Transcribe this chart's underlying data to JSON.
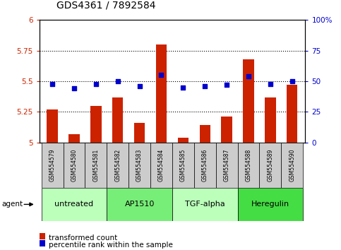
{
  "title": "GDS4361 / 7892584",
  "samples": [
    "GSM554579",
    "GSM554580",
    "GSM554581",
    "GSM554582",
    "GSM554583",
    "GSM554584",
    "GSM554585",
    "GSM554586",
    "GSM554587",
    "GSM554588",
    "GSM554589",
    "GSM554590"
  ],
  "red_values": [
    5.27,
    5.07,
    5.3,
    5.37,
    5.16,
    5.8,
    5.04,
    5.14,
    5.21,
    5.68,
    5.37,
    5.47
  ],
  "blue_values": [
    48,
    44,
    48,
    50,
    46,
    55,
    45,
    46,
    47,
    54,
    48,
    50
  ],
  "ylim_left": [
    5.0,
    6.0
  ],
  "ylim_right": [
    0,
    100
  ],
  "yticks_left": [
    5.0,
    5.25,
    5.5,
    5.75,
    6.0
  ],
  "yticks_right": [
    0,
    25,
    50,
    75,
    100
  ],
  "ytick_labels_left": [
    "5",
    "5.25",
    "5.5",
    "5.75",
    "6"
  ],
  "ytick_labels_right": [
    "0",
    "25",
    "50",
    "75",
    "100%"
  ],
  "hlines": [
    5.25,
    5.5,
    5.75
  ],
  "agent_groups": [
    {
      "label": "untreated",
      "start": 0,
      "end": 3,
      "color": "#bbffbb"
    },
    {
      "label": "AP1510",
      "start": 3,
      "end": 6,
      "color": "#77ee77"
    },
    {
      "label": "TGF-alpha",
      "start": 6,
      "end": 9,
      "color": "#bbffbb"
    },
    {
      "label": "Heregulin",
      "start": 9,
      "end": 12,
      "color": "#44dd44"
    }
  ],
  "bar_color": "#cc2200",
  "dot_color": "#0000cc",
  "bar_width": 0.5,
  "dot_size": 25,
  "title_fontsize": 10,
  "tick_fontsize": 7.5,
  "sample_fontsize": 5.5,
  "agent_fontsize": 8,
  "legend_fontsize": 7.5,
  "legend_items": [
    {
      "label": "transformed count",
      "color": "#cc2200"
    },
    {
      "label": "percentile rank within the sample",
      "color": "#0000cc"
    }
  ]
}
